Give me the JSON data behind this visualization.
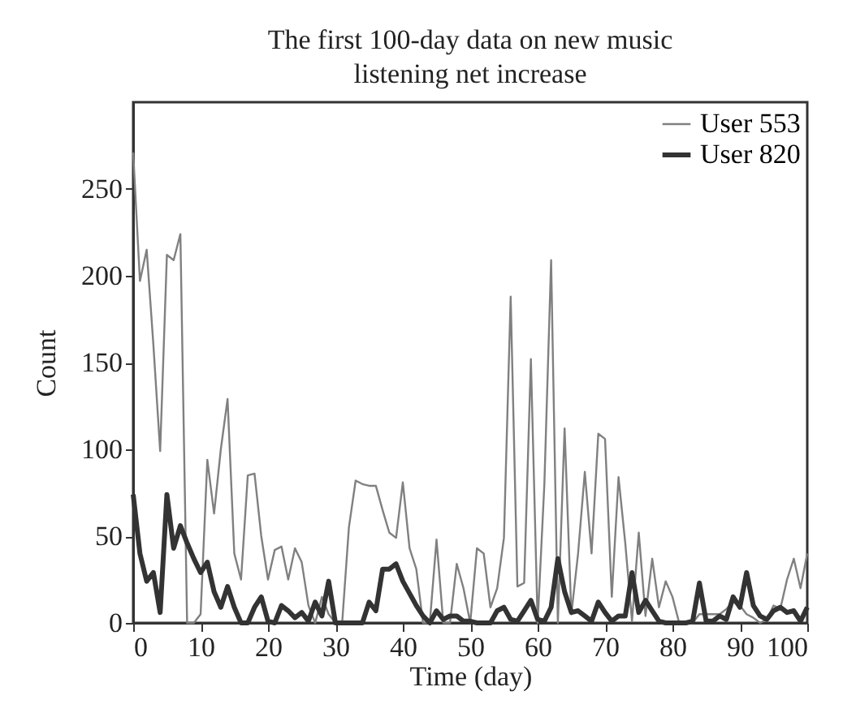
{
  "chart_data": {
    "type": "line",
    "title": "The first 100-day data on new music listening net increase",
    "xlabel": "Time (day)",
    "ylabel": "Count",
    "x": [
      0,
      1,
      2,
      3,
      4,
      5,
      6,
      7,
      8,
      9,
      10,
      11,
      12,
      13,
      14,
      15,
      16,
      17,
      18,
      19,
      20,
      21,
      22,
      23,
      24,
      25,
      26,
      27,
      28,
      29,
      30,
      31,
      32,
      33,
      34,
      35,
      36,
      37,
      38,
      39,
      40,
      41,
      42,
      43,
      44,
      45,
      46,
      47,
      48,
      49,
      50,
      51,
      52,
      53,
      54,
      55,
      56,
      57,
      58,
      59,
      60,
      61,
      62,
      63,
      64,
      65,
      66,
      67,
      68,
      69,
      70,
      71,
      72,
      73,
      74,
      75,
      76,
      77,
      78,
      79,
      80,
      81,
      82,
      83,
      84,
      85,
      86,
      87,
      88,
      89,
      90,
      91,
      92,
      93,
      94,
      95,
      96,
      97,
      98,
      99,
      100
    ],
    "series": [
      {
        "name": "User 553",
        "color": "#808080",
        "values": [
          271,
          197,
          215,
          160,
          99,
          212,
          209,
          224,
          0,
          0,
          5,
          94,
          63,
          100,
          129,
          40,
          25,
          85,
          86,
          50,
          25,
          42,
          44,
          25,
          43,
          35,
          10,
          0,
          15,
          5,
          0,
          0,
          55,
          82,
          80,
          79,
          79,
          65,
          52,
          49,
          81,
          43,
          31,
          0,
          0,
          48,
          0,
          0,
          34,
          20,
          0,
          43,
          40,
          9,
          20,
          49,
          188,
          21,
          23,
          152,
          0,
          80,
          209,
          0,
          112,
          5,
          40,
          87,
          40,
          109,
          106,
          15,
          84,
          46,
          1,
          52,
          4,
          37,
          9,
          24,
          15,
          0,
          0,
          0,
          5,
          5,
          5,
          5,
          8,
          12,
          10,
          5,
          3,
          0,
          2,
          10,
          8,
          25,
          37,
          20,
          40
        ]
      },
      {
        "name": "User 820",
        "color": "#333333",
        "values": [
          74,
          40,
          24,
          29,
          6,
          74,
          43,
          56,
          46,
          37,
          29,
          35,
          18,
          9,
          21,
          9,
          0,
          0,
          9,
          15,
          1,
          0,
          10,
          7,
          3,
          6,
          1,
          12,
          4,
          24,
          0,
          0,
          0,
          0,
          0,
          12,
          7,
          31,
          31,
          34,
          24,
          17,
          10,
          4,
          0,
          7,
          2,
          4,
          4,
          1,
          1,
          0,
          0,
          0,
          7,
          9,
          2,
          1,
          7,
          13,
          2,
          1,
          9,
          37,
          18,
          6,
          7,
          4,
          1,
          12,
          6,
          1,
          4,
          4,
          29,
          6,
          13,
          7,
          1,
          0,
          0,
          0,
          0,
          1,
          23,
          1,
          1,
          4,
          2,
          15,
          9,
          29,
          10,
          4,
          2,
          7,
          9,
          6,
          7,
          1,
          9
        ]
      }
    ],
    "xlim": [
      0,
      100
    ],
    "xticks": [
      0,
      10,
      20,
      30,
      40,
      50,
      60,
      70,
      80,
      90,
      100
    ],
    "ylim": [
      0,
      300
    ],
    "yticks": [
      0,
      50,
      100,
      150,
      200,
      250
    ],
    "legend": "top right",
    "grid": false
  }
}
